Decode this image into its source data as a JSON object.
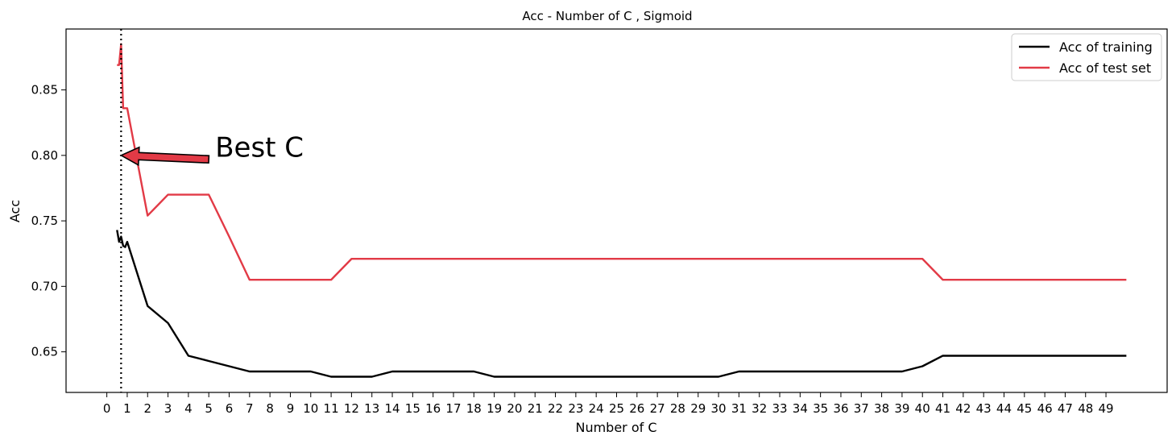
{
  "chart_data": {
    "type": "line",
    "title": "Acc - Number of C , Sigmoid",
    "xlabel": "Number of C",
    "ylabel": "Acc",
    "xlim": [
      -2.0,
      52.0
    ],
    "ylim": [
      0.619,
      0.8965
    ],
    "x_ticks": [
      0,
      1,
      2,
      3,
      4,
      5,
      6,
      7,
      8,
      9,
      10,
      11,
      12,
      13,
      14,
      15,
      16,
      17,
      18,
      19,
      20,
      21,
      22,
      23,
      24,
      25,
      26,
      27,
      28,
      29,
      30,
      31,
      32,
      33,
      34,
      35,
      36,
      37,
      38,
      39,
      40,
      41,
      42,
      43,
      44,
      45,
      46,
      47,
      48,
      49
    ],
    "y_ticks": [
      0.65,
      0.7,
      0.75,
      0.8,
      0.85
    ],
    "y_tick_labels": [
      "0.65",
      "0.70",
      "0.75",
      "0.80",
      "0.85"
    ],
    "grid": false,
    "legend_position": "top-right",
    "series": [
      {
        "name": "Acc of training",
        "color": "#000000",
        "x": [
          0.5,
          0.6,
          0.7,
          0.8,
          0.9,
          1,
          2,
          3,
          4,
          5,
          6,
          7,
          8,
          9,
          10,
          11,
          12,
          13,
          14,
          15,
          16,
          17,
          18,
          19,
          20,
          21,
          22,
          23,
          24,
          25,
          26,
          27,
          28,
          29,
          30,
          31,
          32,
          33,
          34,
          35,
          36,
          37,
          38,
          39,
          40,
          41,
          42,
          43,
          44,
          45,
          46,
          47,
          48,
          49,
          50
        ],
        "y": [
          0.743,
          0.734,
          0.738,
          0.731,
          0.73,
          0.734,
          0.685,
          0.672,
          0.647,
          0.643,
          0.639,
          0.635,
          0.635,
          0.635,
          0.635,
          0.631,
          0.631,
          0.631,
          0.635,
          0.635,
          0.635,
          0.635,
          0.635,
          0.631,
          0.631,
          0.631,
          0.631,
          0.631,
          0.631,
          0.631,
          0.631,
          0.631,
          0.631,
          0.631,
          0.631,
          0.635,
          0.635,
          0.635,
          0.635,
          0.635,
          0.635,
          0.635,
          0.635,
          0.635,
          0.639,
          0.647,
          0.647,
          0.647,
          0.647,
          0.647,
          0.647,
          0.647,
          0.647,
          0.647,
          0.647
        ]
      },
      {
        "name": "Acc of test set",
        "color": "#e23a46",
        "x": [
          0.5,
          0.6,
          0.7,
          0.8,
          0.9,
          1,
          2,
          3,
          4,
          5,
          6,
          7,
          8,
          9,
          10,
          11,
          12,
          13,
          14,
          15,
          16,
          17,
          18,
          19,
          20,
          21,
          22,
          23,
          24,
          25,
          26,
          27,
          28,
          29,
          30,
          31,
          32,
          33,
          34,
          35,
          36,
          37,
          38,
          39,
          40,
          41,
          42,
          43,
          44,
          45,
          46,
          47,
          48,
          49,
          50
        ],
        "y": [
          0.869,
          0.869,
          0.885,
          0.836,
          0.836,
          0.836,
          0.754,
          0.77,
          0.77,
          0.77,
          0.738,
          0.705,
          0.705,
          0.705,
          0.705,
          0.705,
          0.721,
          0.721,
          0.721,
          0.721,
          0.721,
          0.721,
          0.721,
          0.721,
          0.721,
          0.721,
          0.721,
          0.721,
          0.721,
          0.721,
          0.721,
          0.721,
          0.721,
          0.721,
          0.721,
          0.721,
          0.721,
          0.721,
          0.721,
          0.721,
          0.721,
          0.721,
          0.721,
          0.721,
          0.721,
          0.705,
          0.705,
          0.705,
          0.705,
          0.705,
          0.705,
          0.705,
          0.705,
          0.705,
          0.705
        ]
      }
    ],
    "vline_x": 0.7,
    "annotation": {
      "text": "Best C",
      "point": [
        0.7,
        0.8
      ],
      "tail": [
        5.0,
        0.797
      ],
      "color": "#e23a46"
    }
  }
}
